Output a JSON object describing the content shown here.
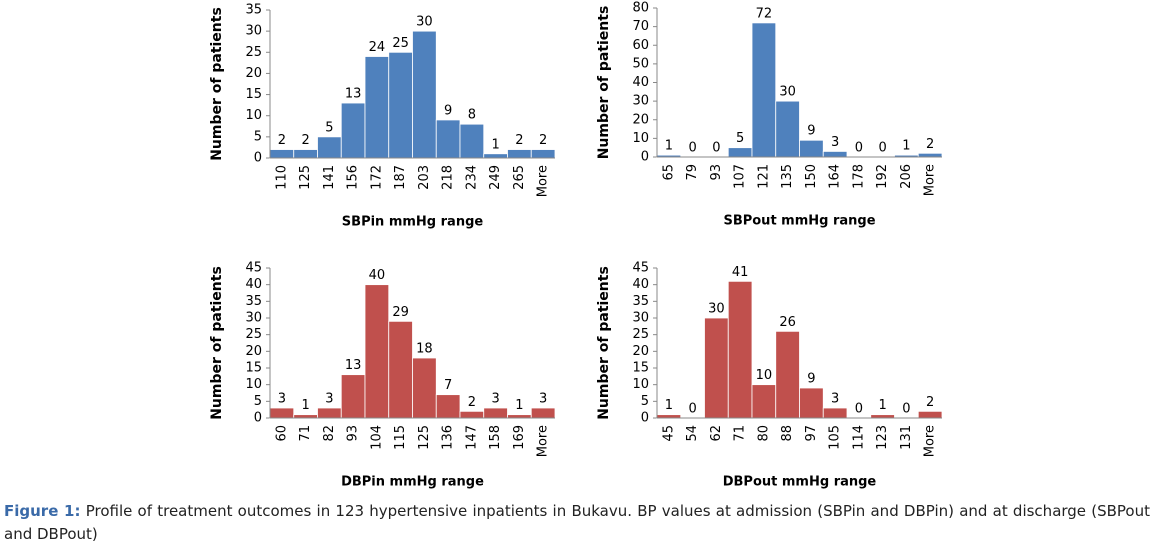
{
  "chart_data": [
    {
      "type": "bar",
      "ylabel": "Number of patients",
      "xlabel": "SBPin mmHg range",
      "color": "#4f81bd",
      "categories": [
        "110",
        "125",
        "141",
        "156",
        "172",
        "187",
        "203",
        "218",
        "234",
        "249",
        "265",
        "More"
      ],
      "values": [
        2,
        2,
        5,
        13,
        24,
        25,
        30,
        9,
        8,
        1,
        2,
        2
      ],
      "ylim": [
        0,
        35
      ],
      "yticks": [
        0,
        5,
        10,
        15,
        20,
        25,
        30,
        35
      ]
    },
    {
      "type": "bar",
      "ylabel": "Number of patients",
      "xlabel": "SBPout mmHg range",
      "color": "#4f81bd",
      "categories": [
        "65",
        "79",
        "93",
        "107",
        "121",
        "135",
        "150",
        "164",
        "178",
        "192",
        "206",
        "More"
      ],
      "values": [
        1,
        0,
        0,
        5,
        72,
        30,
        9,
        3,
        0,
        0,
        1,
        2
      ],
      "ylim": [
        0,
        80
      ],
      "yticks": [
        0,
        10,
        20,
        30,
        40,
        50,
        60,
        70,
        80
      ]
    },
    {
      "type": "bar",
      "ylabel": "Number of patients",
      "xlabel": "DBPin mmHg range",
      "color": "#c0504d",
      "categories": [
        "60",
        "71",
        "82",
        "93",
        "104",
        "115",
        "125",
        "136",
        "147",
        "158",
        "169",
        "More"
      ],
      "values": [
        3,
        1,
        3,
        13,
        40,
        29,
        18,
        7,
        2,
        3,
        1,
        3
      ],
      "ylim": [
        0,
        45
      ],
      "yticks": [
        0,
        5,
        10,
        15,
        20,
        25,
        30,
        35,
        40,
        45
      ]
    },
    {
      "type": "bar",
      "ylabel": "Number of patients",
      "xlabel": "DBPout mmHg range",
      "color": "#c0504d",
      "categories": [
        "45",
        "54",
        "62",
        "71",
        "80",
        "88",
        "97",
        "105",
        "114",
        "123",
        "131",
        "More"
      ],
      "values": [
        1,
        0,
        30,
        41,
        10,
        26,
        9,
        3,
        0,
        1,
        0,
        2
      ],
      "ylim": [
        0,
        45
      ],
      "yticks": [
        0,
        5,
        10,
        15,
        20,
        25,
        30,
        35,
        40,
        45
      ]
    }
  ],
  "figure_caption": {
    "label": "Figure 1:",
    "text": "Profile of treatment outcomes in 123 hypertensive inpatients in Bukavu. BP values at admission (SBPin and DBPin) and at discharge (SBPout and DBPout)"
  }
}
